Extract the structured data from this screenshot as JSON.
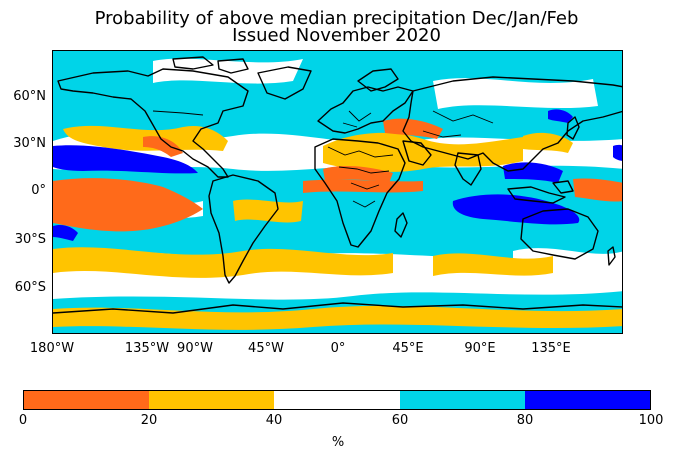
{
  "title": {
    "line1": "Probability of above median precipitation Dec/Jan/Feb",
    "line2": "Issued November 2020"
  },
  "map": {
    "lat_labels": [
      "60°N",
      "30°N",
      "0°",
      "30°S",
      "60°S"
    ],
    "lon_labels": [
      "180°W",
      "135°W",
      "90°W",
      "45°W",
      "0°",
      "45°E",
      "90°E",
      "135°E"
    ],
    "colors": {
      "ocean_background": "#00d4e8",
      "coastline": "#000000"
    }
  },
  "colorbar": {
    "bins": [
      {
        "range": "0-20",
        "color": "#ff6a1a"
      },
      {
        "range": "20-40",
        "color": "#ffc400"
      },
      {
        "range": "40-60",
        "color": "#ffffff"
      },
      {
        "range": "60-80",
        "color": "#00d4e8"
      },
      {
        "range": "80-100",
        "color": "#0000ff"
      }
    ],
    "tick_labels": [
      "0",
      "20",
      "40",
      "60",
      "80",
      "100"
    ],
    "unit_label": "%"
  }
}
